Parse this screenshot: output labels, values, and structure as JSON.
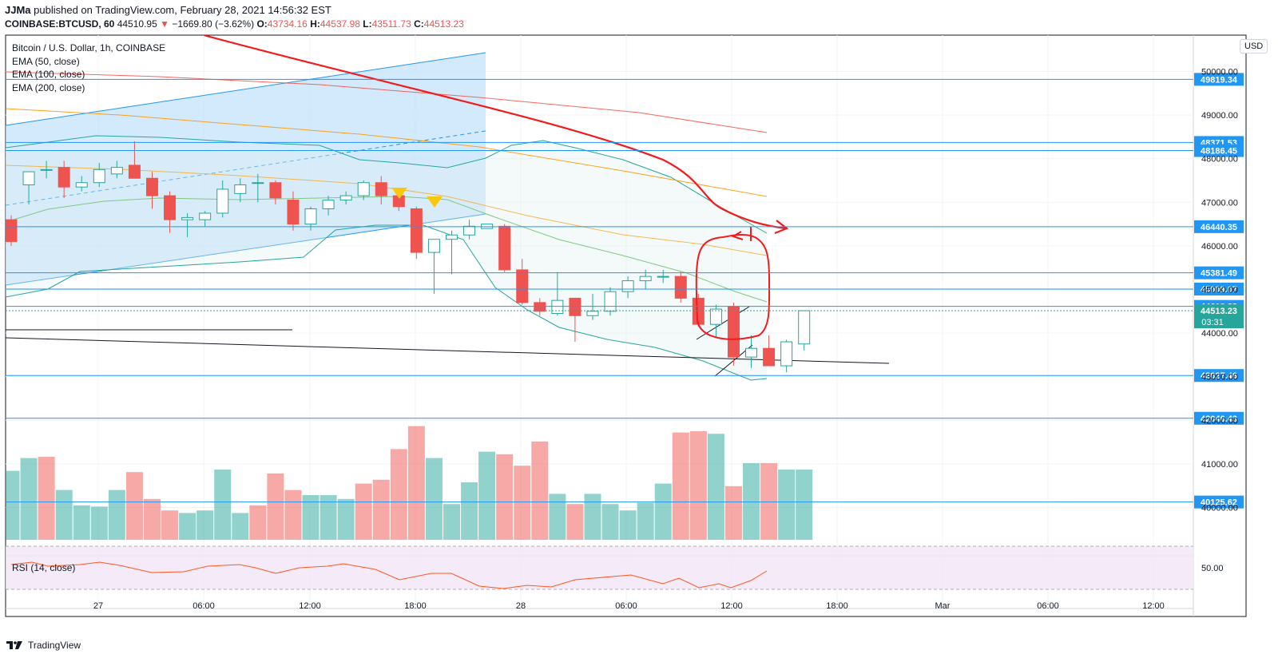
{
  "header": {
    "author": "JJMa",
    "published_text": "published on TradingView.com, February 28, 2021 14:56:32 EST",
    "symbol_line": "COINBASE:BTCUSD, 60",
    "last": "44510.95",
    "arrow": "▼",
    "change": "−1669.80 (−3.62%)",
    "o_label": "O:",
    "o_value": "43734.16",
    "h_label": "H:",
    "h_value": "44537.98",
    "l_label": "L:",
    "l_value": "43511.73",
    "c_label": "C:",
    "c_value": "44513.23"
  },
  "legend": {
    "title": "Bitcoin / U.S. Dollar, 1h, COINBASE",
    "ema50": "EMA (50, close)",
    "ema100": "EMA (100, close)",
    "ema200": "EMA (200, close)"
  },
  "rsi_label": "RSI (14, close)",
  "currency": "USD",
  "footer": {
    "brand": "TradingView"
  },
  "colors": {
    "up": "#26a69a",
    "down": "#ef5350",
    "up_vol": "#26a69a",
    "down_vol": "#ef5350",
    "hline": "#2196f3",
    "ema50": "#4caf50",
    "ema100": "#ff9800",
    "ema200": "#f44336",
    "price_tag": "#26a69a",
    "rsi": "#ff5722",
    "rsi_band": "#f3e5f5"
  },
  "chart_data": {
    "type": "candlestick",
    "symbol": "COINBASE:BTCUSD",
    "interval": "1h",
    "y_axis": {
      "range": [
        39800,
        50700
      ],
      "tick_labels": [
        "50000.00",
        "49000.00",
        "48000.00",
        "47000.00",
        "46000.00",
        "45000.00",
        "44000.00",
        "43000.00",
        "42000.00",
        "41000.00",
        "40000.00"
      ],
      "ticks": [
        50000,
        49000,
        48000,
        47000,
        46000,
        45000,
        44000,
        43000,
        42000,
        41000,
        40000
      ]
    },
    "x_axis": {
      "tick_labels": [
        "27",
        "06:00",
        "12:00",
        "18:00",
        "28",
        "06:00",
        "12:00",
        "18:00",
        "Mar",
        "06:00",
        "12:00"
      ]
    },
    "horizontal_levels": [
      "49819.34",
      "48371.53",
      "48186.45",
      "46440.35",
      "45381.49",
      "45009.07",
      "44612.22",
      "43027.46",
      "42046.43",
      "40125.62"
    ],
    "level_values": [
      49819.34,
      48371.53,
      48186.45,
      46440.35,
      45381.49,
      45009.07,
      44612.22,
      43027.46,
      42046.43,
      40125.62
    ],
    "last_price": {
      "value": "44513.23",
      "countdown": "03:31"
    },
    "candles": [
      [
        46600,
        46700,
        46000,
        46100
      ],
      [
        47400,
        47700,
        46950,
        47700
      ],
      [
        47750,
        47950,
        47550,
        47750
      ],
      [
        47800,
        47950,
        47100,
        47350
      ],
      [
        47350,
        47600,
        47250,
        47450
      ],
      [
        47450,
        47900,
        47350,
        47750
      ],
      [
        47650,
        47950,
        47550,
        47800
      ],
      [
        47850,
        48400,
        47600,
        47550
      ],
      [
        47550,
        47700,
        46850,
        47150
      ],
      [
        47150,
        47250,
        46300,
        46600
      ],
      [
        46600,
        46750,
        46200,
        46650
      ],
      [
        46600,
        46800,
        46450,
        46750
      ],
      [
        46750,
        47500,
        46650,
        47300
      ],
      [
        47200,
        47550,
        47000,
        47400
      ],
      [
        47450,
        47650,
        47000,
        47450
      ],
      [
        47450,
        47500,
        46950,
        47100
      ],
      [
        47050,
        47250,
        46350,
        46500
      ],
      [
        46500,
        46900,
        46350,
        46850
      ],
      [
        46850,
        47150,
        46700,
        47050
      ],
      [
        47050,
        47250,
        46950,
        47150
      ],
      [
        47150,
        47500,
        47050,
        47450
      ],
      [
        47450,
        47600,
        46950,
        47150
      ],
      [
        47150,
        47250,
        46800,
        46900
      ],
      [
        46850,
        46900,
        45700,
        45850
      ],
      [
        45850,
        46150,
        44900,
        46150
      ],
      [
        46150,
        46350,
        45350,
        46250
      ],
      [
        46250,
        46600,
        46150,
        46450
      ],
      [
        46400,
        46500,
        46400,
        46500
      ],
      [
        46450,
        46500,
        45400,
        45450
      ],
      [
        45450,
        45700,
        44650,
        44700
      ],
      [
        44700,
        44800,
        44400,
        44500
      ],
      [
        44450,
        45400,
        44400,
        44750
      ],
      [
        44800,
        44800,
        43800,
        44400
      ],
      [
        44400,
        44900,
        44300,
        44500
      ],
      [
        44500,
        45050,
        44400,
        44950
      ],
      [
        44950,
        45300,
        44800,
        45200
      ],
      [
        45200,
        45450,
        45000,
        45300
      ],
      [
        45300,
        45450,
        45150,
        45300
      ],
      [
        45300,
        45400,
        44700,
        44800
      ],
      [
        44800,
        44900,
        44150,
        44200
      ],
      [
        44200,
        44650,
        43900,
        44550
      ],
      [
        44600,
        44700,
        43250,
        43450
      ],
      [
        43450,
        43950,
        43200,
        43650
      ],
      [
        43650,
        43950,
        43300,
        43250
      ],
      [
        43250,
        43850,
        43100,
        43800
      ],
      [
        43750,
        44520,
        43600,
        44513
      ]
    ],
    "volume_direction": [
      "up",
      "up",
      "down",
      "up",
      "up",
      "up",
      "up",
      "down",
      "down",
      "down",
      "up",
      "up",
      "up",
      "up",
      "down",
      "down",
      "down",
      "up",
      "up",
      "up",
      "down",
      "down",
      "down",
      "down",
      "up",
      "up",
      "up",
      "up",
      "down",
      "down",
      "down",
      "up",
      "down",
      "up",
      "up",
      "up",
      "up",
      "up",
      "down",
      "down",
      "up",
      "down",
      "up",
      "down",
      "up",
      "up"
    ],
    "volume_relative": [
      0.54,
      0.64,
      0.65,
      0.39,
      0.27,
      0.26,
      0.39,
      0.53,
      0.32,
      0.23,
      0.21,
      0.23,
      0.55,
      0.21,
      0.27,
      0.52,
      0.39,
      0.35,
      0.35,
      0.32,
      0.44,
      0.47,
      0.71,
      0.89,
      0.64,
      0.28,
      0.45,
      0.69,
      0.67,
      0.58,
      0.77,
      0.36,
      0.28,
      0.36,
      0.28,
      0.23,
      0.29,
      0.44,
      0.84,
      0.85,
      0.83,
      0.42,
      0.6,
      0.6,
      0.55,
      0.55
    ],
    "rsi": {
      "label": "RSI (14, close)",
      "tick_labels": [
        "50.00"
      ]
    }
  }
}
